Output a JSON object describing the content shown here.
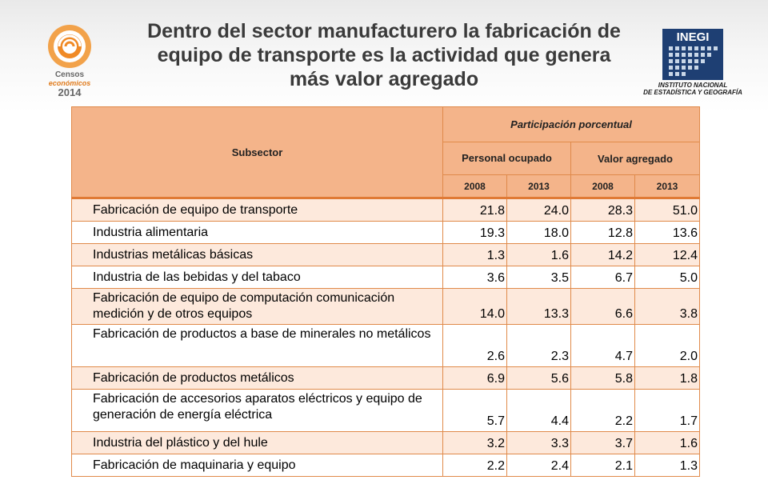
{
  "title_lines": [
    "Dentro del sector manufacturero  la fabricación de",
    "equipo de transporte es la actividad que genera",
    "más valor agregado"
  ],
  "logo_censos": {
    "line1": "Censos",
    "line2": "económicos",
    "line3": "2014"
  },
  "logo_inegi": {
    "name": "INEGI",
    "line1": "INSTITUTO NACIONAL",
    "line2": "DE ESTADÍSTICA Y GEOGRAFÍA"
  },
  "colors": {
    "header_bg": "#f4b48a",
    "band_bg": "#fde9dc",
    "border": "#e08a4a",
    "accent": "#e07b1c"
  },
  "table": {
    "header": {
      "subsector": "Subsector",
      "participacion": "Participación  porcentual",
      "personal": "Personal ocupado",
      "valor": "Valor agregado",
      "years": [
        "2008",
        "2013",
        "2008",
        "2013"
      ]
    },
    "rows": [
      {
        "name": "Fabricación de equipo de transporte",
        "values": [
          "21.8",
          "24.0",
          "28.3",
          "51.0"
        ]
      },
      {
        "name": "Industria alimentaria",
        "values": [
          "19.3",
          "18.0",
          "12.8",
          "13.6"
        ]
      },
      {
        "name": "Industrias metálicas básicas",
        "values": [
          "1.3",
          "1.6",
          "14.2",
          "12.4"
        ]
      },
      {
        "name": "Industria de las bebidas y del tabaco",
        "values": [
          "3.6",
          "3.5",
          "6.7",
          "5.0"
        ]
      },
      {
        "name": "Fabricación de equipo de computación comunicación  medición y de otros equipos",
        "values": [
          "14.0",
          "13.3",
          "6.6",
          "3.8"
        ]
      },
      {
        "name": "Fabricación de productos a base de minerales no metálicos",
        "values": [
          "2.6",
          "2.3",
          "4.7",
          "2.0"
        ]
      },
      {
        "name": "Fabricación de productos metálicos",
        "values": [
          "6.9",
          "5.6",
          "5.8",
          "1.8"
        ]
      },
      {
        "name": "Fabricación de accesorios  aparatos eléctricos y equipo de generación de energía eléctrica",
        "values": [
          "5.7",
          "4.4",
          "2.2",
          "1.7"
        ]
      },
      {
        "name": "Industria del plástico y del hule",
        "values": [
          "3.2",
          "3.3",
          "3.7",
          "1.6"
        ]
      },
      {
        "name": "Fabricación de maquinaria y equipo",
        "values": [
          "2.2",
          "2.4",
          "2.1",
          "1.3"
        ]
      }
    ]
  }
}
